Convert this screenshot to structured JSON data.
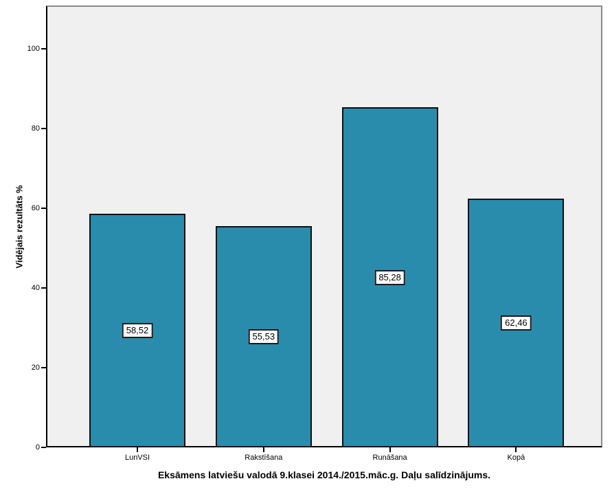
{
  "figure": {
    "title": "Eksāmens latviešu valodā 9.klasei 2014./2015.māc.g. Daļu salīdzinājums.",
    "y_axis_label": "Vidējais rezultāts %"
  },
  "colors": {
    "bar_fill": "#2A8CAC",
    "bar_border": "#101010",
    "plot_background": "#F0F0F0",
    "frame_border": "#8A8A8A",
    "axis_line": "#000000",
    "value_box_background": "#FFFFFF",
    "value_box_border": "#1A1A1A"
  },
  "chart_data": {
    "type": "bar",
    "categories": [
      "LunVSI",
      "Rakstīšana",
      "Runāšana",
      "Kopā"
    ],
    "values": [
      58.52,
      55.53,
      85.28,
      62.46
    ],
    "value_labels": [
      "58,52",
      "55,53",
      "85,28",
      "62,46"
    ],
    "title": "Eksāmens latviešu valodā 9.klasei 2014./2015.māc.g. Daļu salīdzinājums.",
    "xlabel": "",
    "ylabel": "Vidējais rezultāts %",
    "ylim": [
      0,
      110.8
    ],
    "yticks": [
      0,
      20,
      40,
      60,
      80,
      100
    ],
    "grid": false,
    "legend": "none",
    "bar_color": "#2A8CAC",
    "value_label_position": "middle-of-bar"
  }
}
